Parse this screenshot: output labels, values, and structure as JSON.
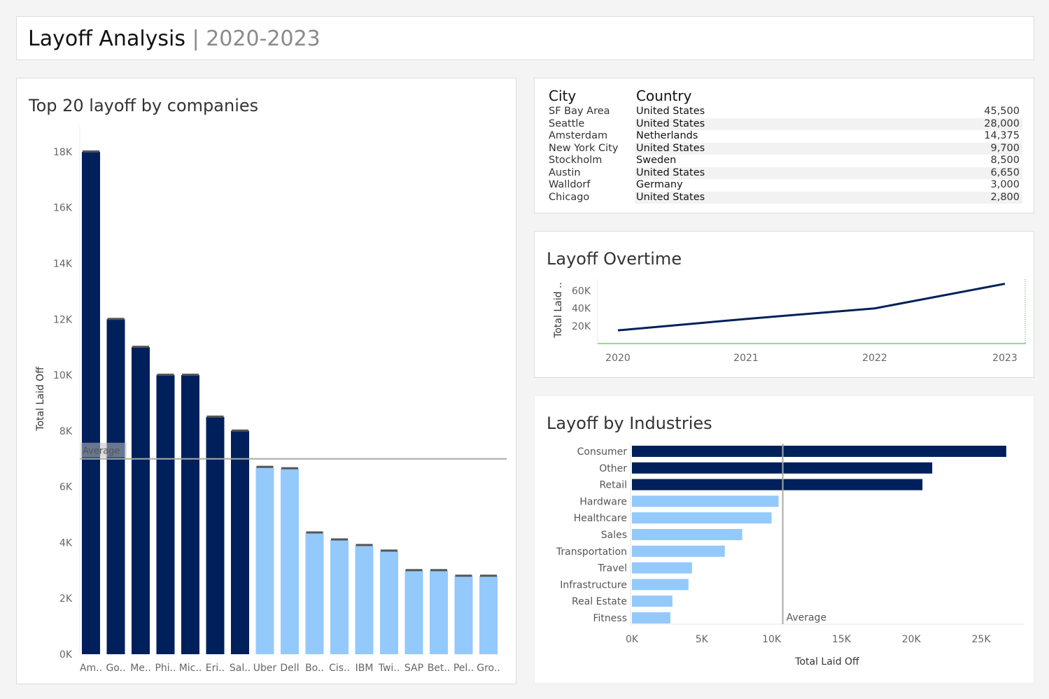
{
  "header": {
    "title": "Layoff Analysis",
    "separator": "|",
    "subtitle": "2020-2023"
  },
  "colors": {
    "dark_bar": "#00205b",
    "light_bar": "#94c9fc",
    "average_line": "#aaaaaa",
    "line": "#00205b",
    "baseline": "#22bb22"
  },
  "top_companies": {
    "title": "Top 20 layoff by companies",
    "ylabel": "Total Laid Off",
    "average_label": "Average",
    "average_value": 7000,
    "yticks": [
      "0K",
      "2K",
      "4K",
      "6K",
      "8K",
      "10K",
      "12K",
      "14K",
      "16K",
      "18K"
    ],
    "ymax": 19000
  },
  "cities": {
    "headers": {
      "city": "City",
      "country": "Country"
    },
    "rows": [
      {
        "city": "SF Bay Area",
        "country": "United States",
        "value": "45,500"
      },
      {
        "city": "Seattle",
        "country": "United States",
        "value": "28,000"
      },
      {
        "city": "Amsterdam",
        "country": "Netherlands",
        "value": "14,375"
      },
      {
        "city": "New York City",
        "country": "United States",
        "value": "9,700"
      },
      {
        "city": "Stockholm",
        "country": "Sweden",
        "value": "8,500"
      },
      {
        "city": "Austin",
        "country": "United States",
        "value": "6,650"
      },
      {
        "city": "Walldorf",
        "country": "Germany",
        "value": "3,000"
      },
      {
        "city": "Chicago",
        "country": "United States",
        "value": "2,800"
      }
    ]
  },
  "overtime": {
    "title": "Layoff Overtime",
    "ylabel": "Total Laid ..",
    "yticks": [
      "20K",
      "40K",
      "60K"
    ]
  },
  "industries": {
    "title": "Layoff by Industries",
    "xlabel": "Total Laid Off",
    "average_label": "Average",
    "average_value": 10800,
    "xticks": [
      "0K",
      "5K",
      "10K",
      "15K",
      "20K",
      "25K"
    ]
  },
  "chart_data": [
    {
      "type": "bar",
      "title": "Top 20 layoff by companies",
      "ylabel": "Total Laid Off",
      "ylim": [
        0,
        19000
      ],
      "categories": [
        "Am..",
        "Go..",
        "Me..",
        "Phi..",
        "Mic..",
        "Eri..",
        "Sal..",
        "Uber",
        "Dell",
        "Bo..",
        "Cis..",
        "IBM",
        "Twi..",
        "SAP",
        "Bet..",
        "Pel..",
        "Gro.."
      ],
      "values": [
        18000,
        12000,
        11000,
        10000,
        10000,
        8500,
        8000,
        6700,
        6650,
        4350,
        4100,
        3900,
        3700,
        3000,
        3000,
        2800,
        2800
      ],
      "above_average": [
        true,
        true,
        true,
        true,
        true,
        true,
        true,
        false,
        false,
        false,
        false,
        false,
        false,
        false,
        false,
        false,
        false
      ],
      "reference_line": {
        "label": "Average",
        "value": 7000
      }
    },
    {
      "type": "line",
      "title": "Layoff Overtime",
      "ylabel": "Total Laid ..",
      "x": [
        "2020",
        "2021",
        "2022",
        "2023"
      ],
      "values": [
        15000,
        28000,
        40000,
        68000
      ],
      "ylim": [
        0,
        78000
      ]
    },
    {
      "type": "bar",
      "orientation": "horizontal",
      "title": "Layoff by Industries",
      "xlabel": "Total Laid Off",
      "xlim": [
        0,
        28000
      ],
      "categories": [
        "Consumer",
        "Other",
        "Retail",
        "Hardware",
        "Healthcare",
        "Sales",
        "Transportation",
        "Travel",
        "Infrastructure",
        "Real Estate",
        "Fitness"
      ],
      "values": [
        26800,
        21500,
        20800,
        10500,
        10000,
        7900,
        6650,
        4300,
        4050,
        2900,
        2750
      ],
      "above_average": [
        true,
        true,
        true,
        false,
        false,
        false,
        false,
        false,
        false,
        false,
        false
      ],
      "reference_line": {
        "label": "Average",
        "value": 10800
      }
    }
  ]
}
